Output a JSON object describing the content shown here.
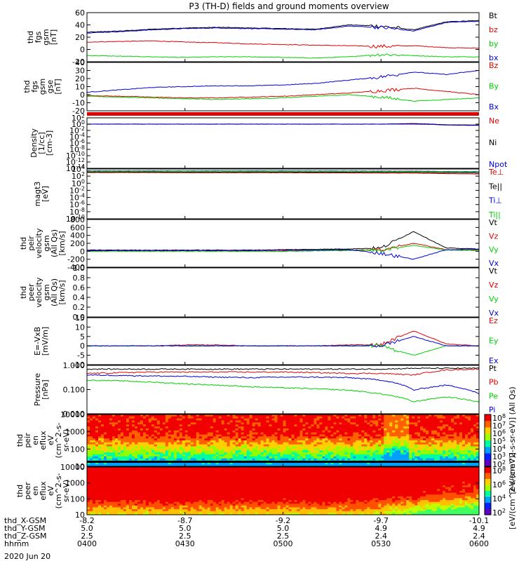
{
  "title": "P3 (TH-D) fields and ground moments overview",
  "date_label": "2020 Jun 20",
  "colors": {
    "black": "#000000",
    "red": "#e00000",
    "green": "#00d000",
    "blue": "#0000d8"
  },
  "x_axis": {
    "time_ticks": [
      "0400",
      "0430",
      "0500",
      "0530",
      "0600"
    ],
    "rows": [
      {
        "label": "thd_X-GSM",
        "values": [
          "-8.2",
          "-8.7",
          "-9.2",
          "-9.7",
          "-10.1"
        ]
      },
      {
        "label": "thd_Y-GSM",
        "values": [
          "5.0",
          "5.0",
          "5.0",
          "4.9",
          "4.9"
        ]
      },
      {
        "label": "thd_Z-GSM",
        "values": [
          "2.5",
          "2.5",
          "2.5",
          "2.4",
          "2.4"
        ]
      },
      {
        "label": "hhmm",
        "values": [
          "0400",
          "0430",
          "0500",
          "0530",
          "0600"
        ]
      }
    ]
  },
  "chart_data": [
    {
      "type": "line",
      "panel": "fgs_gsm",
      "ylabel": [
        "thd",
        "fgs",
        "gsm",
        "[nT]"
      ],
      "ylim": [
        -20,
        60
      ],
      "yticks": [
        "60",
        "40",
        "20",
        "0",
        "-20"
      ],
      "series": [
        {
          "name": "Bt",
          "color": "black",
          "values": [
            28,
            30,
            33,
            35,
            36,
            35,
            34,
            33,
            40,
            38,
            32,
            45,
            47
          ]
        },
        {
          "name": "bz",
          "color": "red",
          "values": [
            12,
            13,
            14,
            12,
            11,
            9,
            8,
            7,
            6,
            5,
            6,
            3,
            2
          ]
        },
        {
          "name": "by",
          "color": "green",
          "values": [
            -10,
            -11,
            -12,
            -13,
            -12,
            -12,
            -13,
            -14,
            -12,
            -8,
            -10,
            -12,
            -12
          ]
        },
        {
          "name": "bx",
          "color": "blue",
          "values": [
            27,
            29,
            32,
            34,
            35,
            34,
            33,
            32,
            38,
            36,
            30,
            44,
            46
          ]
        }
      ]
    },
    {
      "type": "line",
      "panel": "fgs_gse",
      "ylabel": [
        "thd",
        "fgs",
        "gsm",
        "gse",
        "[nT]"
      ],
      "ylim": [
        -20,
        40
      ],
      "yticks": [
        "40",
        "30",
        "20",
        "10",
        "0",
        "-10",
        "-20"
      ],
      "series": [
        {
          "name": "Bz",
          "color": "red",
          "values": [
            -1,
            -2,
            -3,
            -4,
            -4,
            -3,
            -2,
            0,
            2,
            5,
            8,
            4,
            0
          ]
        },
        {
          "name": "By",
          "color": "green",
          "values": [
            -2,
            -3,
            -4,
            -5,
            -6,
            -5,
            -4,
            -2,
            0,
            -3,
            -8,
            -6,
            -4
          ]
        },
        {
          "name": "Bx",
          "color": "blue",
          "values": [
            3,
            6,
            9,
            10,
            11,
            11,
            12,
            14,
            18,
            22,
            28,
            25,
            30
          ]
        }
      ]
    },
    {
      "type": "line",
      "panel": "density",
      "yscale": "log",
      "ylabel": [
        "Density",
        "[1/cc]",
        "[cm-3]"
      ],
      "ylim": [
        1e-14,
        100.0
      ],
      "yticks": [
        "10^2",
        "10^0",
        "10^-2",
        "10^-4",
        "10^-6",
        "10^-8",
        "10^-10",
        "10^-12",
        "10^-14"
      ],
      "series": [
        {
          "name": "Ne",
          "color": "red",
          "values": [
            1,
            1,
            1,
            1,
            1,
            1,
            1,
            1,
            1,
            1,
            1,
            0.6,
            0.5
          ]
        },
        {
          "name": "Ni",
          "color": "black",
          "values": [
            1,
            1,
            1,
            1,
            1,
            1,
            1,
            1,
            1,
            1,
            1.5,
            0.6,
            0.5
          ]
        },
        {
          "name": "Npot",
          "color": "blue",
          "values": [
            1,
            1,
            1,
            1,
            1,
            1,
            1,
            1,
            1,
            1,
            1.2,
            0.5,
            0.4
          ]
        }
      ]
    },
    {
      "type": "line",
      "panel": "temperature",
      "yscale": "log",
      "ylabel": [
        "magt3",
        "[eV]"
      ],
      "ylim": [
        1e-10,
        10000.0
      ],
      "yticks": [
        "10^4",
        "10^2",
        "10^0",
        "10^-2",
        "10^-4",
        "10^-6",
        "10^-8",
        "10^-10"
      ],
      "series": [
        {
          "name": "Te⊥",
          "color": "red",
          "values": [
            1000,
            1000,
            1000,
            900,
            900,
            900,
            900,
            800,
            800,
            700,
            700,
            500,
            400
          ]
        },
        {
          "name": "Te||",
          "color": "black",
          "values": [
            1500,
            1500,
            1500,
            1400,
            1400,
            1400,
            1400,
            1300,
            1300,
            1200,
            1200,
            900,
            800
          ]
        },
        {
          "name": "Ti⊥",
          "color": "blue",
          "values": [
            3000,
            3000,
            3000,
            3000,
            3000,
            3000,
            3000,
            2800,
            2800,
            2500,
            2500,
            2000,
            1800
          ]
        },
        {
          "name": "Ti||",
          "color": "green",
          "values": [
            2500,
            2500,
            2500,
            2500,
            2500,
            2500,
            2500,
            2300,
            2300,
            2000,
            2000,
            1600,
            1400
          ]
        }
      ]
    },
    {
      "type": "line",
      "panel": "ion_velocity",
      "ylabel": [
        "thd",
        "peir",
        "velocity",
        "gsm",
        "(All Qs)",
        "[km/s]"
      ],
      "ylim": [
        -400,
        800
      ],
      "yticks": [
        "800",
        "600",
        "400",
        "200",
        "0",
        "-200",
        "-400"
      ],
      "series": [
        {
          "name": "Vt",
          "color": "black",
          "values": [
            30,
            30,
            30,
            30,
            30,
            30,
            40,
            50,
            60,
            80,
            500,
            80,
            60
          ]
        },
        {
          "name": "Vz",
          "color": "red",
          "values": [
            10,
            10,
            5,
            10,
            10,
            5,
            10,
            20,
            30,
            40,
            200,
            40,
            30
          ]
        },
        {
          "name": "Vy",
          "color": "green",
          "values": [
            0,
            0,
            0,
            0,
            0,
            0,
            0,
            10,
            20,
            30,
            150,
            30,
            20
          ]
        },
        {
          "name": "Vx",
          "color": "blue",
          "values": [
            20,
            20,
            20,
            20,
            20,
            20,
            30,
            30,
            40,
            -50,
            -200,
            40,
            50
          ]
        }
      ]
    },
    {
      "type": "line",
      "panel": "electron_velocity",
      "ylabel": [
        "thd",
        "peer",
        "velocity",
        "gsm",
        "(All Qs)",
        "[km/s]"
      ],
      "ylim": [
        0,
        1
      ],
      "yticks": [
        "1.0",
        "0.8",
        "0.6",
        "0.4",
        "0.2",
        "0.0"
      ],
      "series": [
        {
          "name": "Vt",
          "color": "black",
          "values": []
        },
        {
          "name": "Vz",
          "color": "red",
          "values": []
        },
        {
          "name": "Vy",
          "color": "green",
          "values": []
        },
        {
          "name": "Vx",
          "color": "blue",
          "values": []
        }
      ]
    },
    {
      "type": "line",
      "panel": "efield",
      "ylabel": [
        "E=-VxB",
        "[mV/m]"
      ],
      "ylim": [
        -10,
        15
      ],
      "yticks": [
        "15",
        "10",
        "5",
        "0",
        "-5",
        "-10"
      ],
      "series": [
        {
          "name": "Ez",
          "color": "red",
          "values": [
            0,
            0,
            0,
            0.5,
            0.5,
            0,
            0,
            0,
            0.5,
            0.5,
            8,
            1,
            0
          ]
        },
        {
          "name": "Ey",
          "color": "green",
          "values": [
            0,
            0,
            0,
            0,
            0,
            0,
            0,
            0,
            0,
            0,
            -5,
            0,
            0
          ]
        },
        {
          "name": "Ex",
          "color": "blue",
          "values": [
            0,
            0,
            0,
            0,
            0,
            0,
            0,
            0,
            0,
            0,
            5,
            0,
            0
          ]
        }
      ]
    },
    {
      "type": "line",
      "panel": "pressure",
      "yscale": "log",
      "ylabel": [
        "Pressure",
        "[nPa]"
      ],
      "ylim": [
        0.002,
        1.5
      ],
      "yticks": [
        "1.000",
        "0.100",
        "0.010"
      ],
      "series": [
        {
          "name": "Pt",
          "color": "black",
          "values": [
            0.9,
            0.9,
            0.9,
            0.9,
            0.9,
            0.9,
            0.9,
            0.9,
            0.9,
            0.9,
            1.0,
            1.0,
            1.0
          ]
        },
        {
          "name": "Pb",
          "color": "red",
          "values": [
            0.5,
            0.55,
            0.6,
            0.6,
            0.6,
            0.6,
            0.6,
            0.55,
            0.5,
            0.5,
            0.4,
            0.8,
            0.9
          ]
        },
        {
          "name": "Pe",
          "color": "green",
          "values": [
            0.2,
            0.18,
            0.15,
            0.12,
            0.1,
            0.08,
            0.07,
            0.06,
            0.05,
            0.03,
            0.01,
            0.02,
            0.01
          ]
        },
        {
          "name": "Pi",
          "color": "blue",
          "values": [
            0.4,
            0.38,
            0.35,
            0.33,
            0.3,
            0.28,
            0.3,
            0.3,
            0.28,
            0.2,
            0.05,
            0.1,
            0.03
          ]
        }
      ]
    },
    {
      "type": "heatmap",
      "panel": "ion_spectrogram",
      "ylabel": [
        "thd",
        "peir",
        "en",
        "eflux",
        "eV",
        "(cm^2-s-",
        "sr-eV)"
      ],
      "yscale": "log",
      "ylim": [
        5,
        25000
      ],
      "yticks": [
        "10000",
        "1000",
        "100",
        "10"
      ]
    },
    {
      "type": "heatmap",
      "panel": "electron_spectrogram",
      "ylabel": [
        "thd",
        "peer",
        "en",
        "eflux",
        "eV",
        "(cm^2-s-",
        "sr-eV)"
      ],
      "yscale": "log",
      "ylim": [
        5,
        25000
      ],
      "yticks": [
        "10000",
        "1000",
        "100",
        "10"
      ]
    }
  ],
  "colorbars": [
    {
      "label": "[eV/(cm^2-s-sr-eV)] (All Qs)",
      "ticks": [
        "10^8",
        "10^7",
        "10^6",
        "10^5",
        "10^4",
        "10^3",
        "10^2"
      ]
    },
    {
      "label": "[eV/(cm^2-s-sr-eV)]",
      "ticks": [
        "10^8",
        "10^6",
        "10^4",
        "10^2"
      ]
    }
  ]
}
